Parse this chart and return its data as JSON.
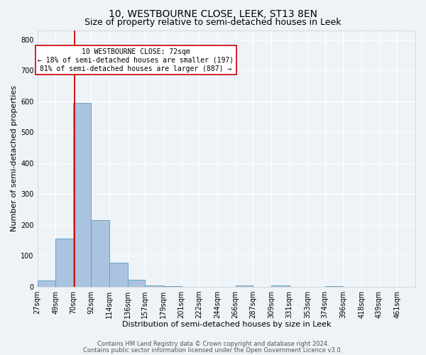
{
  "title": "10, WESTBOURNE CLOSE, LEEK, ST13 8EN",
  "subtitle": "Size of property relative to semi-detached houses in Leek",
  "xlabel": "Distribution of semi-detached houses by size in Leek",
  "ylabel": "Number of semi-detached properties",
  "footer1": "Contains HM Land Registry data © Crown copyright and database right 2024.",
  "footer2": "Contains public sector information licensed under the Open Government Licence v3.0.",
  "bin_labels": [
    "27sqm",
    "49sqm",
    "70sqm",
    "92sqm",
    "114sqm",
    "136sqm",
    "157sqm",
    "179sqm",
    "201sqm",
    "222sqm",
    "244sqm",
    "266sqm",
    "287sqm",
    "309sqm",
    "331sqm",
    "353sqm",
    "374sqm",
    "396sqm",
    "418sqm",
    "439sqm",
    "461sqm"
  ],
  "bar_heights": [
    20,
    155,
    595,
    215,
    78,
    22,
    5,
    3,
    0,
    0,
    0,
    5,
    0,
    5,
    0,
    0,
    2,
    0,
    0,
    0,
    0
  ],
  "bar_color": "#aac4e0",
  "bar_edge_color": "#5a9aba",
  "property_line_x": 72,
  "bin_edges_sqm": [
    27,
    49,
    70,
    92,
    114,
    136,
    157,
    179,
    201,
    222,
    244,
    266,
    287,
    309,
    331,
    353,
    374,
    396,
    418,
    439,
    461,
    483
  ],
  "annotation_title": "10 WESTBOURNE CLOSE: 72sqm",
  "annotation_line1": "← 18% of semi-detached houses are smaller (197)",
  "annotation_line2": "81% of semi-detached houses are larger (887) →",
  "red_line_color": "#cc0000",
  "ylim": [
    0,
    830
  ],
  "yticks": [
    0,
    100,
    200,
    300,
    400,
    500,
    600,
    700,
    800
  ],
  "background_color": "#eef3f8",
  "plot_background_color": "#eef3f8",
  "grid_color": "#ffffff",
  "title_fontsize": 10,
  "subtitle_fontsize": 9,
  "xlabel_fontsize": 8,
  "ylabel_fontsize": 8,
  "tick_fontsize": 7,
  "annotation_fontsize": 7,
  "footer_fontsize": 6
}
